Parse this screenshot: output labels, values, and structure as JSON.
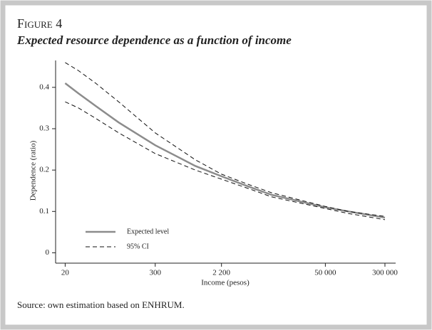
{
  "chart_data": {
    "type": "line",
    "title": "Figure 4",
    "subtitle": "Expected resource dependence as a function of income",
    "x_label": "Income (pesos)",
    "y_label": "Dependence (ratio)",
    "source": "Source: own estimation based on ENHRUM.",
    "x_scale": "log",
    "x": [
      20,
      30,
      50,
      100,
      300,
      1000,
      2200,
      5000,
      10000,
      50000,
      100000,
      300000
    ],
    "series": [
      {
        "name": "Expected level",
        "color": "#8c8c8c",
        "style": "solid",
        "values": [
          0.41,
          0.385,
          0.355,
          0.315,
          0.26,
          0.21,
          0.185,
          0.16,
          0.14,
          0.11,
          0.1,
          0.085
        ]
      },
      {
        "name": "95% CI",
        "color": "#111111",
        "style": "dashed",
        "values": [
          0.46,
          0.44,
          0.41,
          0.365,
          0.29,
          0.225,
          0.19,
          0.165,
          0.145,
          0.112,
          0.1,
          0.088
        ]
      },
      {
        "color": "#111111",
        "style": "dashed",
        "values": [
          0.365,
          0.35,
          0.325,
          0.29,
          0.24,
          0.2,
          0.178,
          0.155,
          0.135,
          0.107,
          0.095,
          0.08
        ]
      }
    ],
    "xlim": [
      15,
      414000
    ],
    "ylim": [
      -0.025,
      0.465
    ],
    "xticks": [
      20,
      300,
      {
        "value": 2200,
        "label": "2 200"
      },
      {
        "value": 50000,
        "label": "50 000"
      },
      {
        "value": 300000,
        "label": "300 000"
      }
    ],
    "yticks": [
      0,
      0.1,
      0.2,
      0.3,
      0.4
    ],
    "legend": "bottom-left"
  }
}
